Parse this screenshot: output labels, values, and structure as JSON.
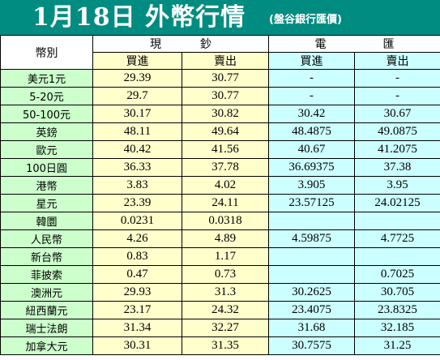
{
  "title": "1月18日 外幣行情",
  "subtitle": "(盤谷銀行匯價)",
  "header": {
    "currency_col": "幣別",
    "cash_group": [
      "現",
      "鈔"
    ],
    "wire_group": [
      "電",
      "匯"
    ],
    "buy": "買進",
    "sell": "賣出"
  },
  "rows": [
    {
      "currency": "美元1元",
      "cash_buy": "29.39",
      "cash_sell": "30.77",
      "wire_buy": "-",
      "wire_sell": "-"
    },
    {
      "currency": "5-20元",
      "cash_buy": "29.7",
      "cash_sell": "30.77",
      "wire_buy": "-",
      "wire_sell": "-"
    },
    {
      "currency": "50-100元",
      "cash_buy": "30.17",
      "cash_sell": "30.82",
      "wire_buy": "30.42",
      "wire_sell": "30.67"
    },
    {
      "currency": "英鎊",
      "cash_buy": "48.11",
      "cash_sell": "49.64",
      "wire_buy": "48.4875",
      "wire_sell": "49.0875"
    },
    {
      "currency": "歐元",
      "cash_buy": "40.42",
      "cash_sell": "41.56",
      "wire_buy": "40.67",
      "wire_sell": "41.2075"
    },
    {
      "currency": "100日圓",
      "cash_buy": "36.33",
      "cash_sell": "37.78",
      "wire_buy": "36.69375",
      "wire_sell": "37.38"
    },
    {
      "currency": "港幣",
      "cash_buy": "3.83",
      "cash_sell": "4.02",
      "wire_buy": "3.905",
      "wire_sell": "3.95"
    },
    {
      "currency": "星元",
      "cash_buy": "23.39",
      "cash_sell": "24.11",
      "wire_buy": "23.57125",
      "wire_sell": "24.02125"
    },
    {
      "currency": "韓圜",
      "cash_buy": "0.0231",
      "cash_sell": "0.0318",
      "wire_buy": "",
      "wire_sell": ""
    },
    {
      "currency": "人民幣",
      "cash_buy": "4.26",
      "cash_sell": "4.89",
      "wire_buy": "4.59875",
      "wire_sell": "4.7725"
    },
    {
      "currency": "新台幣",
      "cash_buy": "0.83",
      "cash_sell": "1.17",
      "wire_buy": "",
      "wire_sell": ""
    },
    {
      "currency": "菲披索",
      "cash_buy": "0.47",
      "cash_sell": "0.73",
      "wire_buy": "",
      "wire_sell": "0.7025"
    },
    {
      "currency": "澳洲元",
      "cash_buy": "29.93",
      "cash_sell": "31.3",
      "wire_buy": "30.2625",
      "wire_sell": "30.705"
    },
    {
      "currency": "紐西蘭元",
      "cash_buy": "23.17",
      "cash_sell": "24.32",
      "wire_buy": "23.4075",
      "wire_sell": "23.8325"
    },
    {
      "currency": "瑞士法朗",
      "cash_buy": "31.34",
      "cash_sell": "32.27",
      "wire_buy": "31.68",
      "wire_sell": "32.185"
    },
    {
      "currency": "加拿大元",
      "cash_buy": "30.31",
      "cash_sell": "31.35",
      "wire_buy": "30.7575",
      "wire_sell": "31.25"
    }
  ],
  "colors": {
    "title_bg": "#008c80",
    "currency_bg": "#ccffcc",
    "cash_bg": "#ffffcc",
    "wire_bg": "#ccffff"
  }
}
